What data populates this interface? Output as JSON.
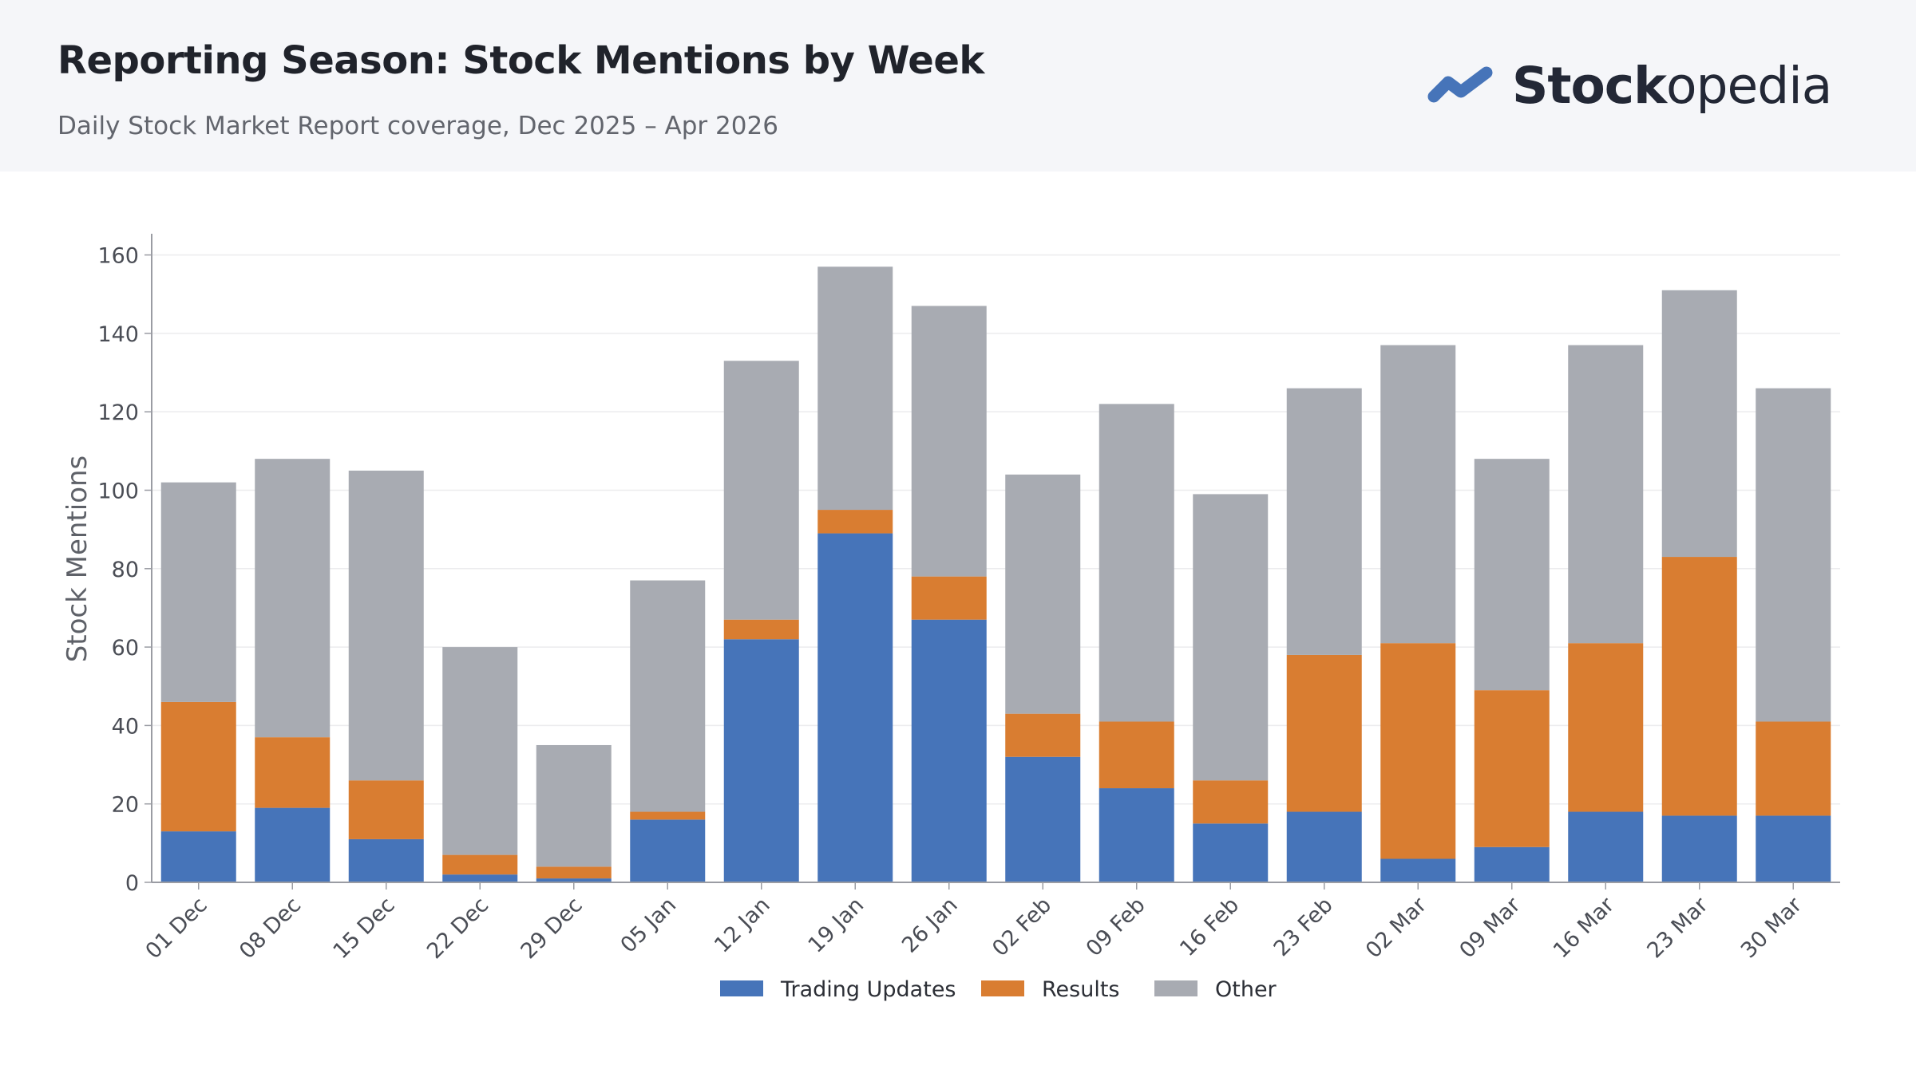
{
  "header": {
    "title": "Reporting Season: Stock Mentions by Week",
    "subtitle": "Daily Stock Market Report coverage, Dec 2025 – Apr 2026",
    "logo_bold": "Stock",
    "logo_light": "opedia"
  },
  "colors": {
    "header_bg": "#f5f6f9",
    "trading_updates": "#4674b9",
    "results": "#d97d31",
    "other": "#a8abb2",
    "logo_mark": "#4674b9"
  },
  "chart_data": {
    "type": "bar",
    "stacked": true,
    "categories": [
      "01 Dec",
      "08 Dec",
      "15 Dec",
      "22 Dec",
      "29 Dec",
      "05 Jan",
      "12 Jan",
      "19 Jan",
      "26 Jan",
      "02 Feb",
      "09 Feb",
      "16 Feb",
      "23 Feb",
      "02 Mar",
      "09 Mar",
      "16 Mar",
      "23 Mar",
      "30 Mar"
    ],
    "series": [
      {
        "name": "Trading Updates",
        "values": [
          13,
          19,
          11,
          2,
          1,
          16,
          62,
          89,
          67,
          32,
          24,
          15,
          18,
          6,
          9,
          18,
          17,
          17
        ]
      },
      {
        "name": "Results",
        "values": [
          33,
          18,
          15,
          5,
          3,
          2,
          5,
          6,
          11,
          11,
          17,
          11,
          40,
          55,
          40,
          43,
          66,
          24
        ]
      },
      {
        "name": "Other",
        "values": [
          56,
          71,
          79,
          53,
          31,
          59,
          66,
          62,
          69,
          61,
          81,
          73,
          68,
          76,
          59,
          76,
          68,
          85
        ]
      }
    ],
    "ylabel": "Stock Mentions",
    "xlabel": "",
    "ylim": [
      0,
      165
    ],
    "yticks": [
      0,
      20,
      40,
      60,
      80,
      100,
      120,
      140,
      160
    ],
    "grid": true,
    "legend": "bottom-center"
  }
}
